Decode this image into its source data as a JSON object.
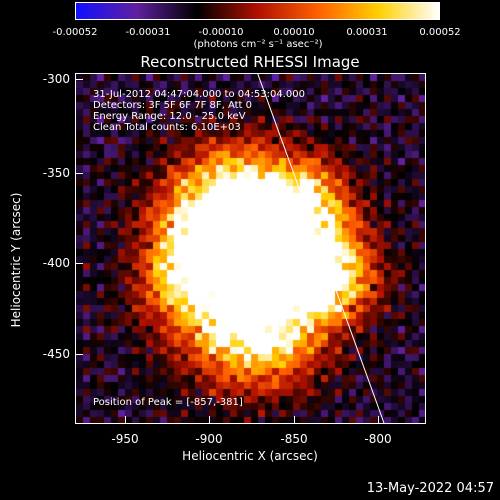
{
  "colorbar": {
    "ticks": [
      "-0.00052",
      "-0.00031",
      "-0.00010",
      "0.00010",
      "0.00031",
      "0.00052"
    ],
    "units_label": "(photons cm⁻² s⁻¹ asec⁻²)",
    "colors": [
      "#1010ff",
      "#6020a0",
      "#000000",
      "#b01000",
      "#ff6000",
      "#ffd000",
      "#ffffff"
    ]
  },
  "title": "Reconstructed RHESSI Image",
  "info": {
    "time_range": "31-Jul-2012 04:47:04.000 to 04:53:04.000",
    "detectors": "Detectors: 3F 5F 6F 7F 8F, Att 0",
    "energy": "Energy Range: 12.0 - 25.0 keV",
    "clean": "Clean    Total counts: 6.10E+03",
    "peak": "Position of Peak = [-857,-381]"
  },
  "axes": {
    "xlabel": "Heliocentric X (arcsec)",
    "ylabel": "Heliocentric Y (arcsec)",
    "xticks": [
      "-950",
      "-900",
      "-850",
      "-800"
    ],
    "yticks": [
      "-300",
      "-350",
      "-400",
      "-450"
    ],
    "xrange": [
      -975,
      -790
    ],
    "yrange": [
      -490,
      -295
    ]
  },
  "footer": {
    "timestamp": "13-May-2022 04:57"
  }
}
